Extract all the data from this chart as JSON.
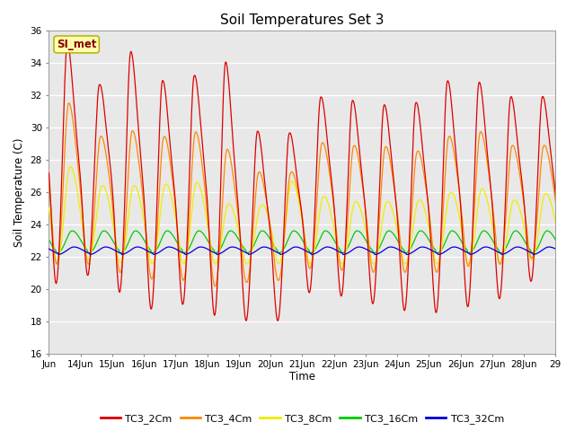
{
  "title": "Soil Temperatures Set 3",
  "ylabel": "Soil Temperature (C)",
  "xlabel": "Time",
  "ylim": [
    16,
    36
  ],
  "xlim_days": [
    0,
    16
  ],
  "bg_color": "#e8e8e8",
  "fig_bg": "#ffffff",
  "line_colors": {
    "TC3_2Cm": "#dd0000",
    "TC3_4Cm": "#ff8800",
    "TC3_8Cm": "#eeee00",
    "TC3_16Cm": "#00cc00",
    "TC3_32Cm": "#0000dd"
  },
  "legend_labels": [
    "TC3_2Cm",
    "TC3_4Cm",
    "TC3_8Cm",
    "TC3_16Cm",
    "TC3_32Cm"
  ],
  "annotation_text": "SI_met",
  "tick_labels": [
    "Jun",
    "14Jun",
    "15Jun",
    "16Jun",
    "17Jun",
    "18Jun",
    "19Jun",
    "20Jun",
    "21Jun",
    "22Jun",
    "23Jun",
    "24Jun",
    "25Jun",
    "26Jun",
    "27Jun",
    "28Jun",
    "29"
  ],
  "yticks": [
    16,
    18,
    20,
    22,
    24,
    26,
    28,
    30,
    32,
    34,
    36
  ],
  "daily_peaks_2cm": [
    35.6,
    32.5,
    35.0,
    33.0,
    33.2,
    34.6,
    29.9,
    29.5,
    32.0,
    31.8,
    31.5,
    31.5,
    33.0,
    33.0,
    32.0,
    32.0
  ],
  "daily_mins_2cm": [
    20.3,
    21.0,
    19.3,
    18.5,
    19.2,
    18.0,
    18.0,
    18.0,
    20.4,
    19.2,
    19.0,
    18.5,
    18.5,
    19.0,
    19.5,
    20.8
  ],
  "daily_peaks_4cm": [
    32.0,
    29.5,
    30.0,
    29.5,
    30.0,
    29.0,
    27.4,
    27.0,
    29.2,
    29.0,
    29.0,
    28.5,
    29.5,
    30.0,
    29.0,
    29.0
  ],
  "daily_mins_4cm": [
    21.5,
    21.5,
    20.8,
    20.5,
    20.5,
    20.0,
    20.5,
    20.5,
    21.5,
    21.0,
    21.0,
    21.0,
    21.0,
    21.5,
    21.5,
    22.0
  ],
  "daily_peaks_8cm": [
    28.0,
    26.5,
    26.5,
    26.5,
    27.0,
    25.5,
    24.8,
    27.0,
    25.9,
    25.5,
    25.5,
    25.5,
    26.0,
    26.5,
    25.5,
    26.0
  ],
  "daily_mins_8cm": [
    21.5,
    21.8,
    21.5,
    21.5,
    21.5,
    21.5,
    21.5,
    21.5,
    21.5,
    21.5,
    21.5,
    21.5,
    21.5,
    21.5,
    21.5,
    21.8
  ]
}
